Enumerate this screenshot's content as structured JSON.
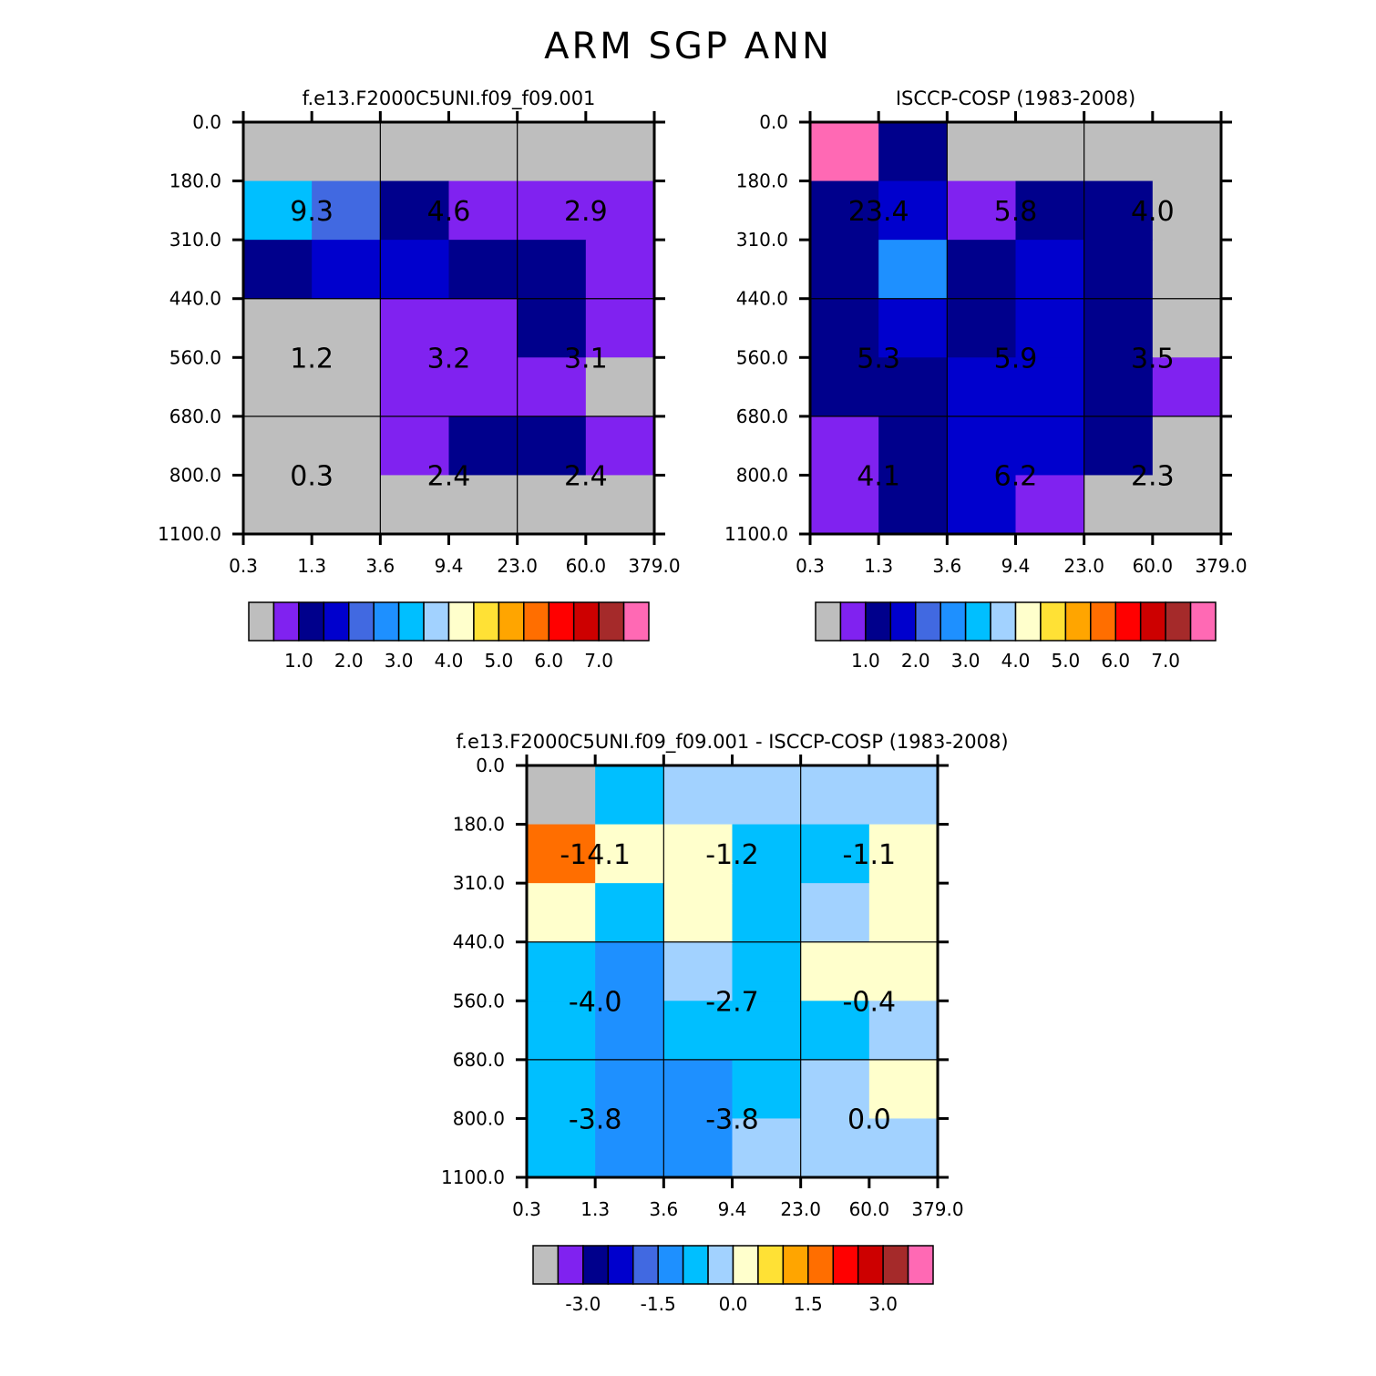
{
  "title": "ARM SGP ANN",
  "colors": {
    "nodata": "#bebebe",
    "palette": [
      "#bebebe",
      "#8022f0",
      "#00008c",
      "#0000cd",
      "#4169e1",
      "#1e90ff",
      "#00bfff",
      "#a2d2ff",
      "#ffffcc",
      "#ffe135",
      "#ffa500",
      "#ff6e00",
      "#ff0000",
      "#cd0000",
      "#a52a2a",
      "#ff69b4"
    ]
  },
  "chart_data": [
    {
      "type": "heatmap",
      "id": "model",
      "title": "f.e13.F2000C5UNI.f09_f09.001",
      "xticks": [
        "0.3",
        "1.3",
        "3.6",
        "9.4",
        "23.0",
        "60.0",
        "379.0"
      ],
      "yticks": [
        "0.0",
        "180.0",
        "310.0",
        "440.0",
        "560.0",
        "680.0",
        "800.0",
        "1100.0"
      ],
      "cell_color_index": [
        [
          0,
          0,
          0,
          0,
          0,
          0
        ],
        [
          6,
          4,
          2,
          1,
          1,
          1
        ],
        [
          2,
          3,
          3,
          2,
          2,
          1
        ],
        [
          0,
          0,
          1,
          1,
          2,
          1
        ],
        [
          0,
          0,
          1,
          1,
          1,
          0
        ],
        [
          0,
          0,
          1,
          2,
          2,
          1
        ],
        [
          0,
          0,
          0,
          0,
          0,
          0
        ]
      ],
      "box_labels": [
        [
          "9.3",
          "4.6",
          "2.9"
        ],
        [
          "1.2",
          "3.2",
          "3.1"
        ],
        [
          "0.3",
          "2.4",
          "2.4"
        ]
      ],
      "colorbar_labels": [
        "1.0",
        "2.0",
        "3.0",
        "4.0",
        "5.0",
        "6.0",
        "7.0"
      ]
    },
    {
      "type": "heatmap",
      "id": "obs",
      "title": "ISCCP-COSP (1983-2008)",
      "xticks": [
        "0.3",
        "1.3",
        "3.6",
        "9.4",
        "23.0",
        "60.0",
        "379.0"
      ],
      "yticks": [
        "0.0",
        "180.0",
        "310.0",
        "440.0",
        "560.0",
        "680.0",
        "800.0",
        "1100.0"
      ],
      "cell_color_index": [
        [
          15,
          2,
          0,
          0,
          0,
          0
        ],
        [
          2,
          3,
          1,
          2,
          2,
          0
        ],
        [
          2,
          5,
          2,
          3,
          2,
          0
        ],
        [
          2,
          3,
          2,
          3,
          2,
          0
        ],
        [
          2,
          2,
          3,
          3,
          2,
          1
        ],
        [
          1,
          2,
          3,
          3,
          2,
          0
        ],
        [
          1,
          2,
          3,
          1,
          0,
          0
        ]
      ],
      "box_labels": [
        [
          "23.4",
          "5.8",
          "4.0"
        ],
        [
          "5.3",
          "5.9",
          "3.5"
        ],
        [
          "4.1",
          "6.2",
          "2.3"
        ]
      ],
      "colorbar_labels": [
        "1.0",
        "2.0",
        "3.0",
        "4.0",
        "5.0",
        "6.0",
        "7.0"
      ]
    },
    {
      "type": "heatmap",
      "id": "diff",
      "title": "f.e13.F2000C5UNI.f09_f09.001 - ISCCP-COSP (1983-2008)",
      "xticks": [
        "0.3",
        "1.3",
        "3.6",
        "9.4",
        "23.0",
        "60.0",
        "379.0"
      ],
      "yticks": [
        "0.0",
        "180.0",
        "310.0",
        "440.0",
        "560.0",
        "680.0",
        "800.0",
        "1100.0"
      ],
      "cell_color_index": [
        [
          0,
          6,
          7,
          7,
          7,
          7
        ],
        [
          11,
          8,
          8,
          6,
          6,
          8
        ],
        [
          8,
          6,
          8,
          6,
          7,
          8
        ],
        [
          6,
          5,
          7,
          6,
          8,
          8
        ],
        [
          6,
          5,
          6,
          6,
          6,
          7
        ],
        [
          6,
          5,
          5,
          6,
          7,
          8
        ],
        [
          6,
          5,
          5,
          7,
          7,
          7
        ]
      ],
      "box_labels": [
        [
          "-14.1",
          "-1.2",
          "-1.1"
        ],
        [
          "-4.0",
          "-2.7",
          "-0.4"
        ],
        [
          "-3.8",
          "-3.8",
          "0.0"
        ]
      ],
      "colorbar_labels": [
        "-3.0",
        "-1.5",
        "0.0",
        "1.5",
        "3.0"
      ]
    }
  ]
}
